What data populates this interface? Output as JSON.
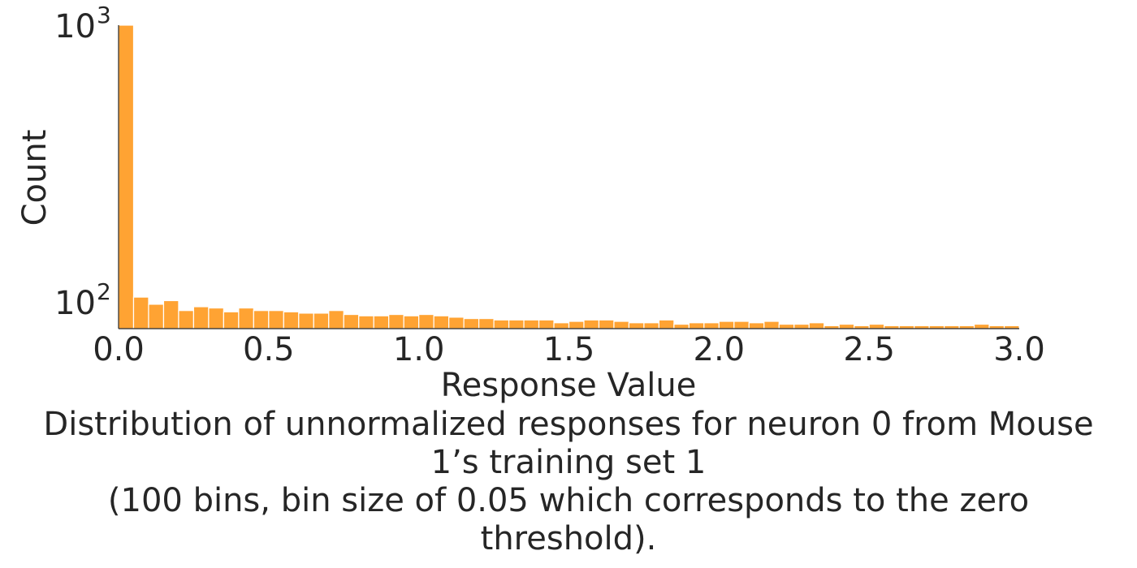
{
  "chart_data": {
    "type": "bar",
    "xlabel": "Response Value",
    "ylabel": "Count",
    "xlim": [
      0.0,
      3.0
    ],
    "ylim": [
      80,
      1000
    ],
    "yscale": "log",
    "grid": false,
    "bar_color": "#ffa333",
    "bin_width": 0.05,
    "x_ticks": [
      "0.0",
      "0.5",
      "1.0",
      "1.5",
      "2.0",
      "2.5",
      "3.0"
    ],
    "y_ticks": [
      {
        "value": 100,
        "base": "10",
        "exp": "2"
      },
      {
        "value": 1000,
        "base": "10",
        "exp": "3"
      }
    ],
    "bins_start": [
      0.0,
      0.05,
      0.1,
      0.15,
      0.2,
      0.25,
      0.3,
      0.35,
      0.4,
      0.45,
      0.5,
      0.55,
      0.6,
      0.65,
      0.7,
      0.75,
      0.8,
      0.85,
      0.9,
      0.95,
      1.0,
      1.05,
      1.1,
      1.15,
      1.2,
      1.25,
      1.3,
      1.35,
      1.4,
      1.45,
      1.5,
      1.55,
      1.6,
      1.65,
      1.7,
      1.75,
      1.8,
      1.85,
      1.9,
      1.95,
      2.0,
      2.05,
      2.1,
      2.15,
      2.2,
      2.25,
      2.3,
      2.35,
      2.4,
      2.45,
      2.5,
      2.55,
      2.6,
      2.65,
      2.7,
      2.75,
      2.8,
      2.85,
      2.9,
      2.95
    ],
    "values": [
      1000,
      104,
      98,
      101,
      93,
      96,
      95,
      92,
      95,
      93,
      93,
      92,
      91,
      91,
      93,
      90,
      89,
      89,
      90,
      89,
      90,
      89,
      88,
      87,
      87,
      86,
      86,
      86,
      86,
      84,
      85,
      86,
      86,
      85,
      84,
      84,
      86,
      83,
      84,
      84,
      85,
      85,
      84,
      85,
      83,
      83,
      84,
      82,
      83,
      82,
      83,
      82,
      82,
      82,
      82,
      82,
      82,
      83,
      82,
      82
    ]
  },
  "caption": {
    "line1": "Distribution of unnormalized responses for neuron 0 from Mouse",
    "line2": "1’s training set 1",
    "line3": "(100 bins, bin size of 0.05 which corresponds to the zero",
    "line4": "threshold)."
  }
}
